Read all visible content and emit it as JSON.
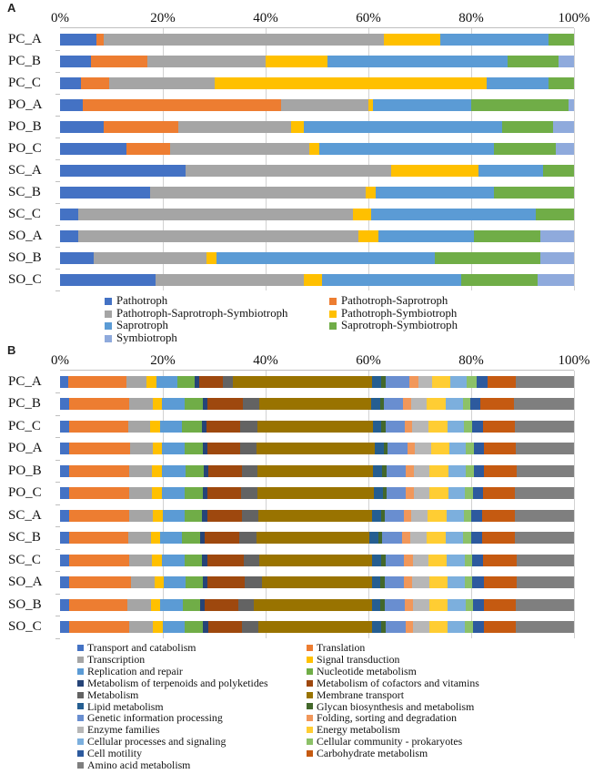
{
  "panels": [
    {
      "label": "A"
    },
    {
      "label": "B"
    }
  ],
  "chart_data": [
    {
      "type": "bar",
      "stacked": true,
      "orientation": "horizontal",
      "title": "",
      "xlabel": "",
      "ylabel": "",
      "xlim": [
        0,
        100
      ],
      "x_ticks": [
        "0%",
        "20%",
        "40%",
        "60%",
        "80%",
        "100%"
      ],
      "grid": "vertical",
      "legend_position": "bottom-two-columns",
      "categories": [
        "PC_A",
        "PC_B",
        "PC_C",
        "PO_A",
        "PO_B",
        "PO_C",
        "SC_A",
        "SC_B",
        "SC_C",
        "SO_A",
        "SO_B",
        "SO_C"
      ],
      "series": [
        {
          "name": "Pathotroph",
          "color": "#4472C4",
          "values": [
            7,
            6,
            4,
            4.5,
            8.5,
            13,
            24.5,
            17.5,
            3.5,
            3.5,
            6.5,
            18.5
          ]
        },
        {
          "name": "Pathotroph-Saprotroph",
          "color": "#ED7D31",
          "values": [
            1.5,
            11,
            5.5,
            38.5,
            14.5,
            8.5,
            0,
            0,
            0,
            0,
            0,
            0
          ]
        },
        {
          "name": "Pathotroph-Saprotroph-Symbiotroph",
          "color": "#A5A5A5",
          "values": [
            54.5,
            23,
            20.5,
            17,
            22,
            27,
            40,
            42,
            53.5,
            54.5,
            22,
            29
          ]
        },
        {
          "name": "Pathotroph-Symbiotroph",
          "color": "#FFC000",
          "values": [
            11,
            12,
            53,
            0.8,
            2.5,
            2,
            17,
            2,
            3.5,
            4,
            2,
            3.5
          ]
        },
        {
          "name": "Saprotroph",
          "color": "#5B9BD5",
          "values": [
            21,
            35,
            12,
            19.2,
            38.5,
            34,
            12.5,
            23,
            32,
            18.5,
            42.5,
            27
          ]
        },
        {
          "name": "Saprotroph-Symbiotroph",
          "color": "#70AD47",
          "values": [
            5,
            10,
            5,
            19,
            10,
            12,
            6,
            15.5,
            7.5,
            13,
            20.5,
            15
          ]
        },
        {
          "name": "Symbiotroph",
          "color": "#8FAADC",
          "values": [
            0,
            3,
            0,
            1,
            4,
            3.5,
            0,
            0,
            0,
            6.5,
            6.5,
            7
          ]
        }
      ]
    },
    {
      "type": "bar",
      "stacked": true,
      "orientation": "horizontal",
      "title": "",
      "xlabel": "",
      "ylabel": "",
      "xlim": [
        0,
        100
      ],
      "x_ticks": [
        "0%",
        "20%",
        "40%",
        "60%",
        "80%",
        "100%"
      ],
      "grid": "vertical",
      "legend_position": "bottom-two-columns",
      "categories": [
        "PC_A",
        "PC_B",
        "PC_C",
        "PO_A",
        "PO_B",
        "PO_C",
        "SC_A",
        "SC_B",
        "SC_C",
        "SO_A",
        "SO_B",
        "SO_C"
      ],
      "series": [
        {
          "name": "Transport and catabolism",
          "color": "#4472C4",
          "values": [
            1.6,
            1.7,
            1.7,
            1.7,
            1.7,
            1.7,
            1.7,
            1.7,
            1.8,
            1.8,
            1.7,
            1.7
          ]
        },
        {
          "name": "Translation",
          "color": "#ED7D31",
          "values": [
            11,
            11.5,
            11.3,
            11.6,
            11.4,
            11.5,
            11.6,
            11.3,
            11.4,
            11.8,
            11.2,
            11.6
          ]
        },
        {
          "name": "Transcription",
          "color": "#A5A5A5",
          "values": [
            3.9,
            4.5,
            4.2,
            4.4,
            4.5,
            4.4,
            4.6,
            4.4,
            4.5,
            4.6,
            4.5,
            4.6
          ]
        },
        {
          "name": "Signal transduction",
          "color": "#FFC000",
          "values": [
            1.8,
            1.8,
            1.8,
            1.8,
            1.9,
            1.8,
            1.9,
            1.8,
            1.9,
            1.8,
            1.8,
            1.9
          ]
        },
        {
          "name": "Replication and repair",
          "color": "#5B9BD5",
          "values": [
            4.0,
            4.3,
            4.2,
            4.3,
            4.4,
            4.3,
            4.2,
            4.2,
            4.4,
            4.1,
            4.3,
            4.2
          ]
        },
        {
          "name": "Nucleotide metabolism",
          "color": "#70AD47",
          "values": [
            3.3,
            3.4,
            3.8,
            3.4,
            3.5,
            3.5,
            3.3,
            3.5,
            3.3,
            3.3,
            3.4,
            3.5
          ]
        },
        {
          "name": "Metabolism of terpenoids and polyketides",
          "color": "#264478",
          "values": [
            0.9,
            0.9,
            0.9,
            0.9,
            0.9,
            0.9,
            1.0,
            0.9,
            1.0,
            1.0,
            0.9,
            0.9
          ]
        },
        {
          "name": "Metabolism of cofactors and vitamins",
          "color": "#9E480E",
          "values": [
            4.4,
            6.8,
            6.5,
            6.3,
            6.4,
            6.5,
            6.7,
            6.6,
            7.0,
            7.2,
            6.4,
            6.6
          ]
        },
        {
          "name": "Metabolism",
          "color": "#636363",
          "values": [
            1.9,
            3.0,
            3.2,
            3.1,
            3.0,
            3.0,
            3.1,
            3.3,
            2.9,
            3.2,
            3.0,
            3.1
          ]
        },
        {
          "name": "Membrane transport",
          "color": "#997300",
          "values": [
            26.5,
            21.5,
            22.0,
            22.5,
            22.0,
            22.2,
            21.8,
            21.6,
            21.8,
            21.2,
            22.6,
            21.9
          ]
        },
        {
          "name": "Lipid metabolism",
          "color": "#255E91",
          "values": [
            1.8,
            1.6,
            1.7,
            1.7,
            1.7,
            1.7,
            1.7,
            1.7,
            1.7,
            1.7,
            1.7,
            1.7
          ]
        },
        {
          "name": "Glycan biosynthesis and metabolism",
          "color": "#43682B",
          "values": [
            0.9,
            0.8,
            0.8,
            0.8,
            0.8,
            0.8,
            0.8,
            0.8,
            0.8,
            0.8,
            0.8,
            0.8
          ]
        },
        {
          "name": "Genetic information processing",
          "color": "#698ED0",
          "values": [
            4.4,
            3.6,
            3.6,
            3.7,
            3.7,
            3.7,
            3.6,
            3.8,
            3.6,
            3.7,
            3.9,
            3.8
          ]
        },
        {
          "name": "Folding, sorting and degradation",
          "color": "#F1975A",
          "values": [
            1.8,
            1.5,
            1.5,
            1.5,
            1.5,
            1.5,
            1.5,
            1.5,
            1.6,
            1.6,
            1.5,
            1.5
          ]
        },
        {
          "name": "Enzyme families",
          "color": "#B7B7B7",
          "values": [
            2.6,
            3.0,
            3.1,
            3.0,
            3.1,
            3.0,
            3.1,
            3.2,
            3.1,
            3.2,
            3.1,
            3.1
          ]
        },
        {
          "name": "Energy metabolism",
          "color": "#FFCD33",
          "values": [
            3.5,
            3.6,
            3.6,
            3.5,
            3.6,
            3.5,
            3.7,
            3.7,
            3.5,
            3.6,
            3.6,
            3.6
          ]
        },
        {
          "name": "Cellular processes and signaling",
          "color": "#7CAFDD",
          "values": [
            3.0,
            3.3,
            3.2,
            3.2,
            3.3,
            3.2,
            3.3,
            3.3,
            3.4,
            3.3,
            3.4,
            3.3
          ]
        },
        {
          "name": "Cellular community - prokaryotes",
          "color": "#8CC168",
          "values": [
            2.0,
            1.4,
            1.5,
            1.5,
            1.5,
            1.5,
            1.4,
            1.5,
            1.4,
            1.4,
            1.5,
            1.5
          ]
        },
        {
          "name": "Cell motility",
          "color": "#2D5A9E",
          "values": [
            2.0,
            2.0,
            2.0,
            2.0,
            2.0,
            2.0,
            2.1,
            2.1,
            2.2,
            2.2,
            2.0,
            2.1
          ]
        },
        {
          "name": "Carbohydrate metabolism",
          "color": "#C55A11",
          "values": [
            5.5,
            6.3,
            6.2,
            6.0,
            6.1,
            6.1,
            6.2,
            6.3,
            6.4,
            6.4,
            6.1,
            6.2
          ]
        },
        {
          "name": "Amino acid metabolism",
          "color": "#7F7F7F",
          "values": [
            11.0,
            11.5,
            11.2,
            11.1,
            11.0,
            11.2,
            11.4,
            11.3,
            11.0,
            11.0,
            11.2,
            11.1
          ]
        }
      ]
    }
  ],
  "layout": {
    "row_height_a": 24,
    "row_height_b": 24.5,
    "gridline_color": "#D2D2D2",
    "axis_line_color": "#BFBFBF"
  }
}
